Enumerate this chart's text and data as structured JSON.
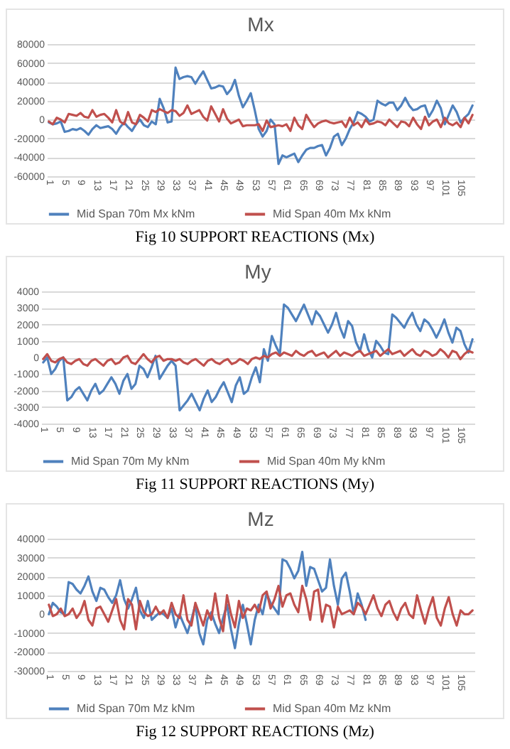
{
  "chart_data": [
    {
      "type": "line",
      "title": "Mx",
      "categories": [
        "1",
        null,
        null,
        null,
        "5",
        null,
        null,
        null,
        "9",
        null,
        null,
        null,
        "13",
        null,
        null,
        null,
        "17",
        null,
        null,
        null,
        "21",
        null,
        null,
        null,
        "25",
        null,
        null,
        null,
        "29",
        null,
        null,
        null,
        "33",
        null,
        null,
        null,
        "37",
        null,
        null,
        null,
        "41",
        null,
        null,
        null,
        "45",
        null,
        null,
        null,
        "49",
        null,
        null,
        null,
        "53",
        null,
        null,
        null,
        "57",
        null,
        null,
        null,
        "61",
        null,
        null,
        null,
        "65",
        null,
        null,
        null,
        "69",
        null,
        null,
        null,
        "73",
        null,
        null,
        null,
        "77",
        null,
        null,
        null,
        "81",
        null,
        null,
        null,
        "85",
        null,
        null,
        null,
        "89",
        null,
        null,
        null,
        "93",
        null,
        null,
        null,
        "97",
        null,
        null,
        null,
        "101",
        null,
        null,
        null,
        "105",
        null,
        null,
        null
      ],
      "series": [
        {
          "name": "Mid Span 70m Mx kNm",
          "color": "#4f81bd",
          "values": [
            -3000,
            -5000,
            -4000,
            -2000,
            -13000,
            -12000,
            -10000,
            -11000,
            -9000,
            -12000,
            -16000,
            -10000,
            -6000,
            -9000,
            -8000,
            -7000,
            -10000,
            -15000,
            -8000,
            -3000,
            -8000,
            -12000,
            -5000,
            0,
            -6000,
            -8000,
            -2000,
            -5000,
            22000,
            12000,
            -3000,
            -2000,
            55000,
            43000,
            45000,
            46000,
            45000,
            38000,
            45000,
            51000,
            42000,
            33000,
            34000,
            36000,
            35000,
            27000,
            32000,
            42000,
            25000,
            13000,
            20000,
            28000,
            10000,
            -10000,
            -18000,
            -12000,
            0,
            -5000,
            -47000,
            -38000,
            -40000,
            -38000,
            -36000,
            -45000,
            -38000,
            -32000,
            -30000,
            -30000,
            -28000,
            -27000,
            -38000,
            -30000,
            -18000,
            -15000,
            -27000,
            -20000,
            -10000,
            -3000,
            8000,
            6000,
            3000,
            -2000,
            0,
            20000,
            17000,
            15000,
            18000,
            18000,
            10000,
            15000,
            23000,
            15000,
            10000,
            11000,
            14000,
            15000,
            3000,
            10000,
            20000,
            12000,
            -5000,
            5000,
            15000,
            8000,
            -3000,
            2000,
            6000,
            15000
          ]
        },
        {
          "name": "Mid Span 40m Mx kNm",
          "color": "#c0504d",
          "values": [
            -2000,
            -5000,
            2000,
            0,
            -3000,
            6000,
            5000,
            4000,
            7000,
            3000,
            2000,
            10000,
            3000,
            5000,
            6000,
            2000,
            -3000,
            10000,
            -2000,
            -5000,
            8000,
            -3000,
            -5000,
            5000,
            2000,
            -2000,
            10000,
            8000,
            11000,
            9000,
            7000,
            10000,
            9000,
            4000,
            7000,
            15000,
            6000,
            8000,
            10000,
            3000,
            -1000,
            14000,
            6000,
            -2000,
            11000,
            1000,
            -4000,
            -2000,
            0,
            -7000,
            -6000,
            -6000,
            -6000,
            -5000,
            -12000,
            -1000,
            -8000,
            -7000,
            -6000,
            -7000,
            -5000,
            -12000,
            2000,
            -6000,
            -10000,
            5000,
            -2000,
            -8000,
            -4000,
            -2000,
            -1000,
            -3000,
            -4000,
            -3000,
            -2000,
            -8000,
            2000,
            -6000,
            -3000,
            -8000,
            0,
            -5000,
            -4000,
            -2000,
            -3000,
            -6000,
            0,
            -4000,
            -8000,
            -2000,
            -3000,
            -7000,
            2000,
            -5000,
            -10000,
            3000,
            -6000,
            -2000,
            0,
            -8000,
            2000,
            -4000,
            -6000,
            -3000,
            -8000,
            2000,
            -4000,
            5000
          ]
        }
      ],
      "ylim": [
        -60000,
        80000
      ],
      "yticks": [
        -60000,
        -40000,
        -20000,
        0,
        20000,
        40000,
        60000,
        80000
      ],
      "grid": "y",
      "legend": "bottom",
      "annotations": [
        "Fig 10 SUPPORT REACTIONS (Mx)"
      ]
    },
    {
      "type": "line",
      "title": "My",
      "categories": [
        "1",
        null,
        null,
        null,
        "5",
        null,
        null,
        null,
        "9",
        null,
        null,
        null,
        "13",
        null,
        null,
        null,
        "17",
        null,
        null,
        null,
        "21",
        null,
        null,
        null,
        "25",
        null,
        null,
        null,
        "29",
        null,
        null,
        null,
        "33",
        null,
        null,
        null,
        "37",
        null,
        null,
        null,
        "41",
        null,
        null,
        null,
        "45",
        null,
        null,
        null,
        "49",
        null,
        null,
        null,
        "53",
        null,
        null,
        null,
        "57",
        null,
        null,
        null,
        "61",
        null,
        null,
        null,
        "65",
        null,
        null,
        null,
        "69",
        null,
        null,
        null,
        "73",
        null,
        null,
        null,
        "77",
        null,
        null,
        null,
        "81",
        null,
        null,
        null,
        "85",
        null,
        null,
        null,
        "89",
        null,
        null,
        null,
        "93",
        null,
        null,
        null,
        "97",
        null,
        null,
        null,
        "101",
        null,
        null,
        null,
        "105",
        null,
        null,
        null
      ],
      "series": [
        {
          "name": "Mid Span 70m My kNm",
          "color": "#4f81bd",
          "values": [
            -300,
            0,
            -1000,
            -700,
            -200,
            0,
            -2600,
            -2400,
            -2000,
            -1800,
            -2200,
            -2600,
            -2000,
            -1600,
            -2200,
            -2000,
            -1600,
            -1200,
            -1600,
            -2200,
            -1400,
            -1000,
            -1900,
            -1600,
            -500,
            -700,
            -1200,
            -600,
            100,
            -1300,
            -900,
            -500,
            -200,
            -500,
            -3200,
            -2900,
            -2600,
            -2200,
            -2700,
            -3200,
            -2500,
            -2000,
            -2700,
            -2400,
            -1900,
            -1500,
            -2100,
            -2700,
            -1700,
            -1200,
            -2200,
            -2000,
            -1200,
            -600,
            -1500,
            500,
            -200,
            1300,
            700,
            200,
            3200,
            3000,
            2600,
            2200,
            2700,
            3200,
            2600,
            2000,
            2800,
            2500,
            2000,
            1500,
            2000,
            2700,
            1800,
            1200,
            2200,
            1900,
            900,
            400,
            1400,
            500,
            0,
            1000,
            700,
            300,
            200,
            2600,
            2400,
            2100,
            1800,
            2300,
            2700,
            2000,
            1600,
            2300,
            2100,
            1700,
            1200,
            1700,
            2300,
            1500,
            900,
            1800,
            1600,
            800,
            300,
            1100
          ]
        },
        {
          "name": "Mid Span 40m My kNm",
          "color": "#c0504d",
          "values": [
            -100,
            200,
            -200,
            -300,
            -100,
            0,
            -300,
            -400,
            -200,
            -100,
            -400,
            -500,
            -200,
            -100,
            -300,
            -500,
            -200,
            -100,
            -400,
            -300,
            0,
            100,
            -300,
            -400,
            -100,
            200,
            -100,
            -300,
            0,
            100,
            -200,
            -100,
            -100,
            -200,
            -100,
            -300,
            -400,
            -200,
            -100,
            -300,
            -500,
            -200,
            -100,
            -300,
            -400,
            -200,
            -100,
            -400,
            -300,
            -100,
            -200,
            -400,
            -100,
            0,
            -100,
            100,
            0,
            200,
            300,
            100,
            300,
            200,
            100,
            400,
            200,
            100,
            300,
            400,
            100,
            200,
            300,
            0,
            200,
            400,
            100,
            300,
            200,
            100,
            300,
            400,
            100,
            200,
            300,
            400,
            100,
            300,
            500,
            200,
            300,
            400,
            100,
            300,
            500,
            200,
            100,
            400,
            300,
            100,
            200,
            500,
            300,
            0,
            400,
            300,
            -100,
            200,
            400,
            300
          ]
        }
      ],
      "ylim": [
        -4000,
        4000
      ],
      "yticks": [
        -4000,
        -3000,
        -2000,
        -1000,
        0,
        1000,
        2000,
        3000,
        4000
      ],
      "grid": "y",
      "legend": "bottom",
      "annotations": [
        "Fig 11 SUPPORT REACTIONS (My)"
      ]
    },
    {
      "type": "line",
      "title": "Mz",
      "categories": [
        "1",
        null,
        null,
        null,
        "5",
        null,
        null,
        null,
        "9",
        null,
        null,
        null,
        "13",
        null,
        null,
        null,
        "17",
        null,
        null,
        null,
        "21",
        null,
        null,
        null,
        "25",
        null,
        null,
        null,
        "29",
        null,
        null,
        null,
        "33",
        null,
        null,
        null,
        "37",
        null,
        null,
        null,
        "41",
        null,
        null,
        null,
        "45",
        null,
        null,
        null,
        "49",
        null,
        null,
        null,
        "53",
        null,
        null,
        null,
        "57",
        null,
        null,
        null,
        "61",
        null,
        null,
        null,
        "65",
        null,
        null,
        null,
        "69",
        null,
        null,
        null,
        "73",
        null,
        null,
        null,
        "77",
        null,
        null,
        null,
        "81",
        null,
        null,
        null,
        "85",
        null,
        null,
        null,
        "89",
        null,
        null,
        null,
        "93",
        null,
        null,
        null,
        "97",
        null,
        null,
        null,
        "101",
        null,
        null,
        null,
        "105",
        null,
        null,
        null
      ],
      "series": [
        {
          "name": "Mid Span 70m Mz kNm",
          "color": "#4f81bd",
          "values": [
            0,
            6000,
            4000,
            1000,
            0,
            17000,
            16000,
            13000,
            11000,
            15000,
            20000,
            12000,
            7000,
            14000,
            13000,
            9000,
            6000,
            10000,
            18000,
            8000,
            3000,
            8000,
            14000,
            2000,
            -2000,
            7000,
            -3000,
            -1000,
            1000,
            0,
            -2000,
            3000,
            -7000,
            0,
            -5000,
            -10000,
            -3000,
            5000,
            -10000,
            -16000,
            -3000,
            1000,
            -5000,
            -10000,
            -2000,
            5000,
            -8000,
            -18000,
            -5000,
            5000,
            -5000,
            -16000,
            -3000,
            5000,
            0,
            11000,
            6000,
            3000,
            0,
            29000,
            28000,
            24000,
            19000,
            23000,
            33000,
            15000,
            25000,
            24000,
            18000,
            12000,
            14000,
            29000,
            15000,
            5000,
            19000,
            22000,
            12000,
            0,
            11000,
            5000,
            -3000,
            null,
            null,
            null,
            null,
            null,
            null,
            null,
            null,
            null,
            null,
            null,
            null,
            null,
            null,
            null,
            null,
            null,
            null,
            null,
            null,
            null,
            null,
            null,
            null,
            null,
            null,
            null
          ]
        },
        {
          "name": "Mid Span 40m Mz kNm",
          "color": "#c0504d",
          "values": [
            5000,
            -1000,
            0,
            3000,
            -1000,
            0,
            3000,
            -2000,
            1000,
            7000,
            -3000,
            -6000,
            3000,
            4000,
            0,
            -4000,
            2000,
            8000,
            -3000,
            -8000,
            8000,
            5000,
            -8000,
            7000,
            1000,
            -1000,
            0,
            4000,
            0,
            2000,
            -2000,
            6000,
            0,
            -2000,
            10000,
            -3000,
            -6000,
            6000,
            0,
            -6000,
            2000,
            -3000,
            11000,
            -2000,
            -9000,
            10000,
            0,
            -7000,
            7000,
            -2000,
            3000,
            2000,
            5000,
            1000,
            10000,
            12000,
            3000,
            8000,
            15000,
            4000,
            10000,
            11000,
            5000,
            1000,
            15000,
            8000,
            -3000,
            12000,
            13000,
            -4000,
            5000,
            4000,
            -7000,
            4000,
            0,
            1000,
            2000,
            0,
            6000,
            4000,
            0,
            5000,
            10000,
            3000,
            -1000,
            5000,
            7000,
            1000,
            -3000,
            3000,
            6000,
            0,
            -2000,
            10000,
            2000,
            -5000,
            3000,
            9000,
            -2000,
            -6000,
            3000,
            9000,
            0,
            -6000,
            2000,
            0,
            0,
            2000
          ]
        }
      ],
      "ylim": [
        -30000,
        40000
      ],
      "yticks": [
        -30000,
        -20000,
        -10000,
        0,
        10000,
        20000,
        30000,
        40000
      ],
      "grid": "y",
      "legend": "bottom",
      "annotations": [
        "Fig 12 SUPPORT REACTIONS (Mz)"
      ]
    }
  ]
}
